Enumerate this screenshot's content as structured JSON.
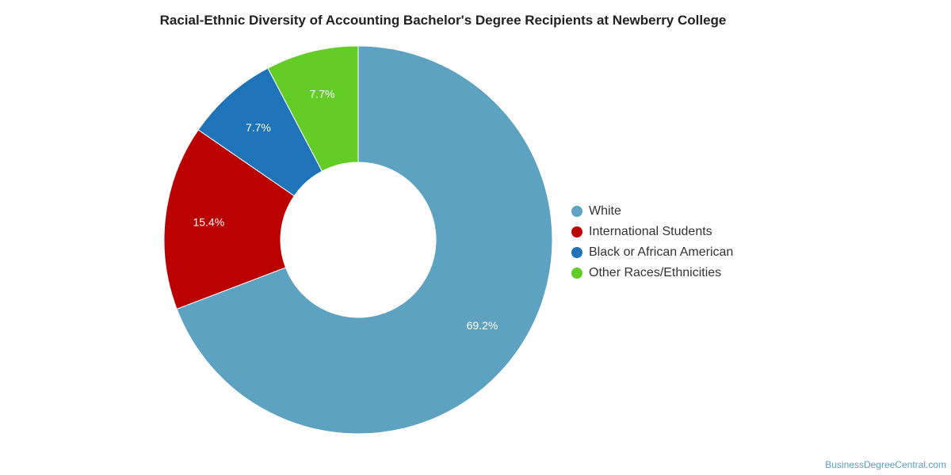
{
  "chart_data": {
    "type": "pie",
    "variant": "donut",
    "title": "Racial-Ethnic Diversity of Accounting Bachelor's Degree Recipients at Newberry College",
    "series": [
      {
        "name": "White",
        "value": 69.2,
        "label": "69.2%",
        "color": "#5da2c0"
      },
      {
        "name": "International Students",
        "value": 15.4,
        "label": "15.4%",
        "color": "#bb0000"
      },
      {
        "name": "Black or African American",
        "value": 7.7,
        "label": "7.7%",
        "color": "#1f73b8"
      },
      {
        "name": "Other Races/Ethnicities",
        "value": 7.7,
        "label": "7.7%",
        "color": "#63cc26"
      }
    ],
    "legend_position": "right"
  },
  "footer": {
    "source": "BusinessDegreeCentral.com"
  }
}
